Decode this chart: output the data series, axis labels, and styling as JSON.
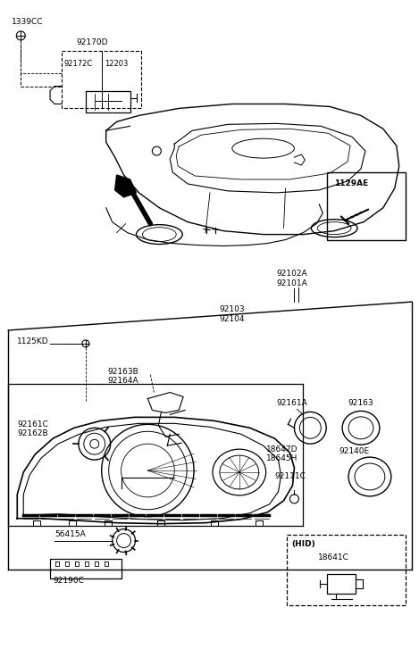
{
  "bg_color": "#ffffff",
  "line_color": "#000000",
  "figsize": [
    4.69,
    7.27
  ],
  "dpi": 100,
  "labels": {
    "l1339CC": "1339CC",
    "l92170D": "92170D",
    "l92172C": "92172C",
    "l12203": "12203",
    "l1129AE": "1129AE",
    "l92102A": "92102A",
    "l92101A": "92101A",
    "l92103": "92103",
    "l92104": "92104",
    "l1125KD": "1125KD",
    "l92163B": "92163B",
    "l92164A": "92164A",
    "l92161C": "92161C",
    "l92162B": "92162B",
    "l92161A": "92161A",
    "l92163": "92163",
    "l18647D": "18647D",
    "l18645H": "18645H",
    "l92111C": "92111C",
    "l92140E": "92140E",
    "l56415A": "56415A",
    "l92190C": "92190C",
    "lHID": "(HID)",
    "l18641C": "18641C"
  },
  "font_sizes": {
    "label": 6.5,
    "label_sm": 6.0
  }
}
